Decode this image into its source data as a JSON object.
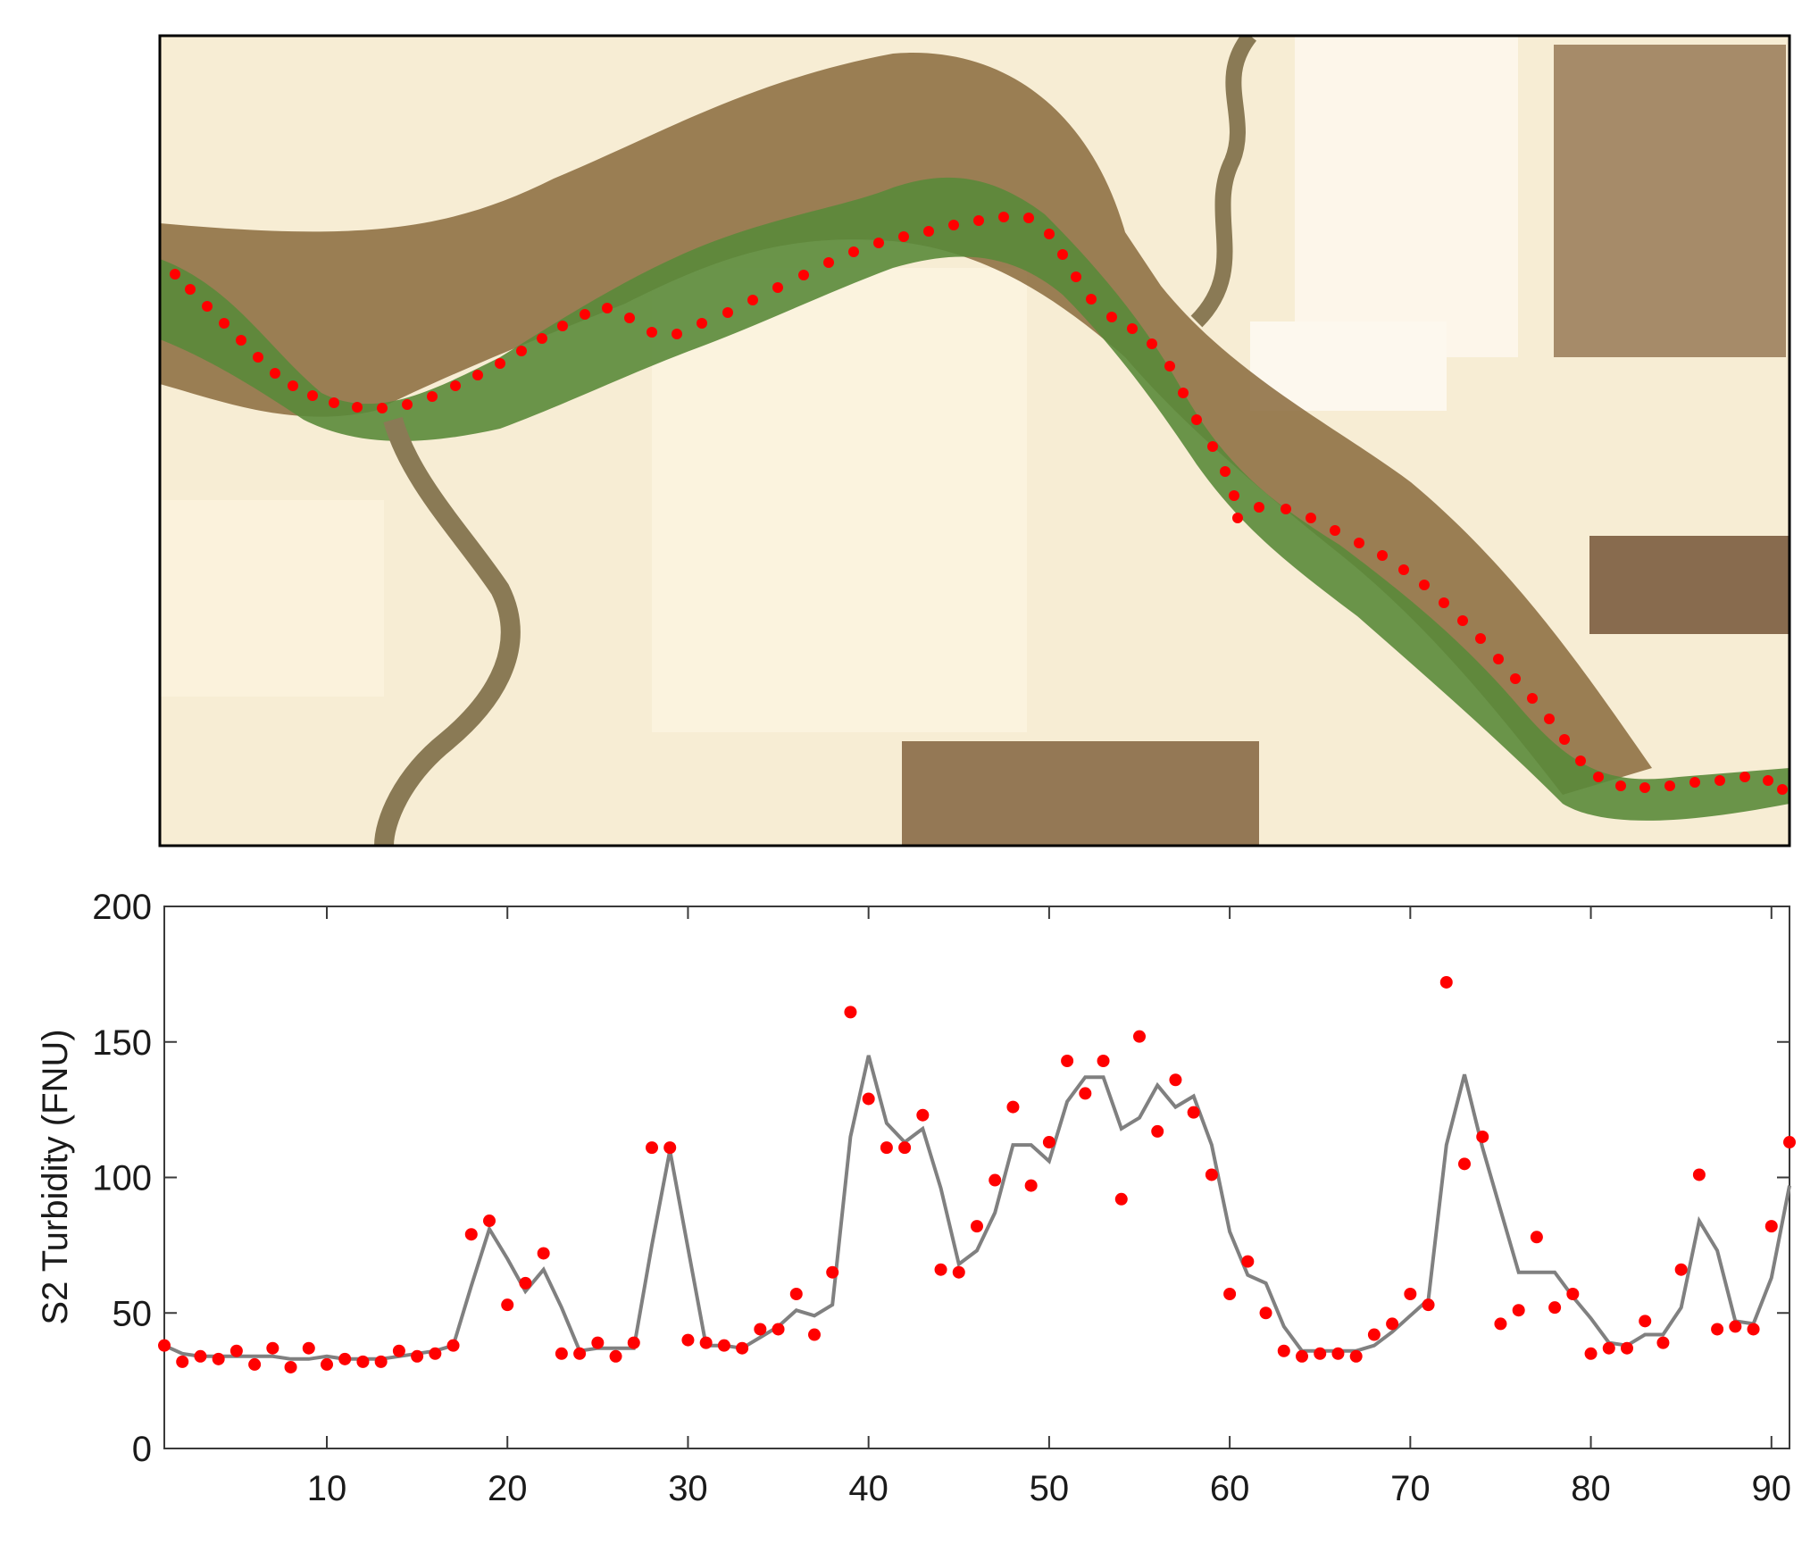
{
  "chart_data": {
    "type": "line+scatter",
    "ylabel": "S2 Turbidity (FNU)",
    "xlim": [
      1,
      91
    ],
    "ylim": [
      0,
      200
    ],
    "xticks": [
      10,
      20,
      30,
      40,
      50,
      60,
      70,
      80,
      90
    ],
    "yticks": [
      0,
      50,
      100,
      150,
      200
    ],
    "colors": {
      "points": "#ff0000",
      "line": "#808080"
    },
    "points": {
      "x": [
        1,
        2,
        3,
        4,
        5,
        6,
        7,
        8,
        9,
        10,
        11,
        12,
        13,
        14,
        15,
        16,
        17,
        18,
        19,
        20,
        21,
        22,
        23,
        24,
        25,
        26,
        27,
        28,
        29,
        30,
        31,
        32,
        33,
        34,
        35,
        36,
        37,
        38,
        39,
        40,
        41,
        42,
        43,
        44,
        45,
        46,
        47,
        48,
        49,
        50,
        51,
        52,
        53,
        54,
        55,
        56,
        57,
        58,
        59,
        60,
        61,
        62,
        63,
        64,
        65,
        66,
        67,
        68,
        69,
        70,
        71,
        72,
        73,
        74,
        75,
        76,
        77,
        78,
        79,
        80,
        81,
        82,
        83,
        84,
        85,
        86,
        87,
        88,
        89,
        90,
        91
      ],
      "y": [
        38,
        32,
        34,
        33,
        36,
        31,
        37,
        30,
        37,
        31,
        33,
        32,
        32,
        36,
        34,
        35,
        38,
        79,
        84,
        53,
        61,
        72,
        35,
        35,
        39,
        34,
        39,
        111,
        111,
        40,
        39,
        38,
        37,
        44,
        44,
        57,
        42,
        65,
        161,
        129,
        111,
        111,
        123,
        66,
        65,
        82,
        99,
        126,
        97,
        113,
        143,
        131,
        143,
        92,
        152,
        117,
        136,
        124,
        101,
        57,
        69,
        50,
        36,
        34,
        35,
        35,
        34,
        42,
        46,
        57,
        53,
        172,
        105,
        115,
        46,
        51,
        78,
        52,
        57,
        35,
        37,
        37,
        47,
        39,
        66,
        101,
        44,
        45,
        44,
        82,
        113
      ]
    },
    "line": {
      "x": [
        1,
        2,
        3,
        4,
        5,
        6,
        7,
        8,
        9,
        10,
        11,
        12,
        13,
        14,
        15,
        16,
        17,
        18,
        19,
        20,
        21,
        22,
        23,
        24,
        25,
        26,
        27,
        28,
        29,
        30,
        31,
        32,
        33,
        34,
        35,
        36,
        37,
        38,
        39,
        40,
        41,
        42,
        43,
        44,
        45,
        46,
        47,
        48,
        49,
        50,
        51,
        52,
        53,
        54,
        55,
        56,
        57,
        58,
        59,
        60,
        61,
        62,
        63,
        64,
        65,
        66,
        67,
        68,
        69,
        70,
        71,
        72,
        73,
        74,
        75,
        76,
        77,
        78,
        79,
        80,
        81,
        82,
        83,
        84,
        85,
        86,
        87,
        88,
        89,
        90,
        91
      ],
      "y": [
        38,
        35,
        34,
        34,
        34,
        34,
        34,
        33,
        33,
        34,
        33,
        33,
        33,
        34,
        35,
        36,
        38,
        60,
        81,
        70,
        58,
        66,
        52,
        36,
        37,
        37,
        37,
        75,
        110,
        74,
        38,
        38,
        37,
        41,
        45,
        51,
        49,
        53,
        115,
        145,
        120,
        113,
        118,
        96,
        68,
        73,
        87,
        112,
        112,
        106,
        128,
        137,
        137,
        118,
        122,
        134,
        126,
        130,
        112,
        80,
        64,
        61,
        45,
        36,
        36,
        36,
        36,
        38,
        43,
        49,
        55,
        112,
        138,
        111,
        88,
        65,
        65,
        65,
        56,
        48,
        39,
        38,
        42,
        42,
        52,
        84,
        73,
        47,
        46,
        63,
        97
      ]
    }
  }
}
